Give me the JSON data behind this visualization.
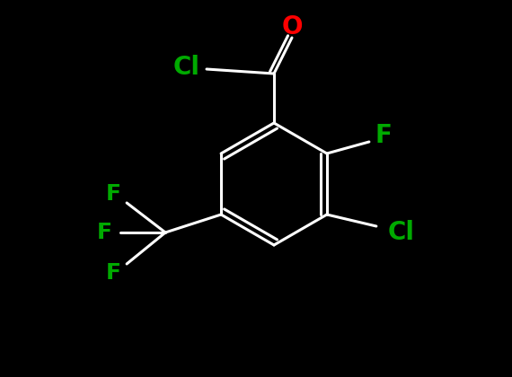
{
  "bg_color": "#000000",
  "bond_color": "#ffffff",
  "atom_colors": {
    "O": "#ff0000",
    "Cl": "#00aa00",
    "F": "#00aa00"
  },
  "bond_width": 2.2,
  "font_size_atom": 18,
  "figsize": [
    5.7,
    4.2
  ],
  "dpi": 100
}
